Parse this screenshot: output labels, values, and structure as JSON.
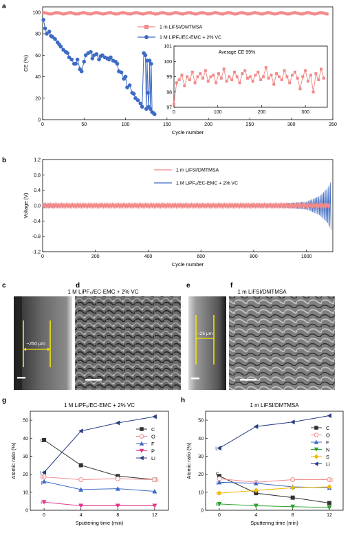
{
  "panel_letters": {
    "a": "a",
    "b": "b",
    "c": "c",
    "d": "d",
    "e": "e",
    "f": "f",
    "g": "g",
    "h": "h"
  },
  "panel_c_title": "1 M LiPF₆/EC-EMC + 2% VC",
  "panel_e_title": "1 m LiFSI/DMTMSA",
  "sem_labels": {
    "c_thickness": "~250 μm",
    "e_thickness": "~26 μm"
  },
  "chart_data": [
    {
      "id": "a",
      "type": "scatter",
      "xlabel": "Cycle number",
      "ylabel": "CE (%)",
      "xlim": [
        0,
        350
      ],
      "ylim": [
        0,
        105
      ],
      "xticks": [
        0,
        50,
        100,
        150,
        200,
        250,
        300,
        350
      ],
      "yticks": [
        0,
        20,
        40,
        60,
        80,
        100
      ],
      "legend": "top-center",
      "series": [
        {
          "name": "1 m LiFSI/DMTMSA",
          "color": "#f28a8a",
          "marker": "square",
          "x_range": [
            1,
            345
          ],
          "value": 99
        },
        {
          "name": "1 M LiPF₆/EC-EMC + 2% VC",
          "color": "#3e6bc4",
          "marker": "circle",
          "x": [
            1,
            3,
            5,
            8,
            10,
            12,
            15,
            18,
            20,
            22,
            25,
            28,
            30,
            32,
            35,
            38,
            40,
            42,
            45,
            47,
            50,
            52,
            55,
            58,
            60,
            62,
            65,
            68,
            70,
            72,
            75,
            78,
            80,
            82,
            85,
            88,
            90,
            92,
            95,
            98,
            100,
            102,
            105,
            108,
            110,
            112,
            115,
            118,
            120,
            122,
            124,
            125,
            126,
            127,
            128,
            129,
            130,
            131,
            132,
            134,
            135
          ],
          "y": [
            93,
            85,
            80,
            82,
            78,
            77,
            75,
            72,
            70,
            68,
            65,
            63,
            62,
            58,
            56,
            52,
            52,
            56,
            47,
            45,
            54,
            60,
            62,
            63,
            57,
            60,
            61,
            56,
            59,
            60,
            58,
            57,
            56,
            58,
            55,
            54,
            52,
            45,
            44,
            38,
            40,
            30,
            32,
            25,
            24,
            20,
            18,
            15,
            12,
            62,
            60,
            10,
            55,
            25,
            12,
            55,
            10,
            52,
            7,
            6,
            5
          ]
        },
        {
          "name": "",
          "color": "#f28a8a",
          "marker": "square",
          "inset": true,
          "x": [
            0,
            6,
            12,
            18,
            24,
            30,
            36,
            42,
            48,
            54,
            60,
            66,
            72,
            78,
            84,
            90,
            96,
            102,
            108,
            114,
            120,
            126,
            132,
            138,
            144,
            150,
            156,
            162,
            168,
            174,
            180,
            186,
            192,
            198,
            204,
            210,
            216,
            222,
            228,
            234,
            240,
            246,
            252,
            258,
            264,
            270,
            276,
            282,
            288,
            294,
            300,
            306,
            312,
            318,
            324,
            330,
            336,
            342
          ],
          "y": [
            97.2,
            98.6,
            98.8,
            99.1,
            98.4,
            99.0,
            98.8,
            99.3,
            98.6,
            99.0,
            99.2,
            98.9,
            99.4,
            98.7,
            99.0,
            99.1,
            98.6,
            99.2,
            98.9,
            99.5,
            98.7,
            99.0,
            98.8,
            99.3,
            99.0,
            98.6,
            99.2,
            99.4,
            98.9,
            99.0,
            98.7,
            99.1,
            99.3,
            98.8,
            99.0,
            99.6,
            98.9,
            99.1,
            98.5,
            99.2,
            99.0,
            98.8,
            99.4,
            99.0,
            98.6,
            99.1,
            99.3,
            98.9,
            98.2,
            99.0,
            99.4,
            98.7,
            99.1,
            98.0,
            99.2,
            98.8,
            99.5,
            98.9
          ]
        }
      ],
      "inset": {
        "annotation": "Average CE 99%",
        "xlim": [
          0,
          350
        ],
        "ylim": [
          97,
          101
        ],
        "xticks": [
          0,
          100,
          200,
          300
        ],
        "yticks": [
          97,
          98,
          99,
          100,
          101
        ]
      }
    },
    {
      "id": "b",
      "type": "line",
      "xlabel": "Cycle number",
      "ylabel": "Voltage (V)",
      "xlim": [
        0,
        1100
      ],
      "ylim": [
        -1.2,
        1.2
      ],
      "xticks": [
        0,
        200,
        400,
        600,
        800,
        1000
      ],
      "yticks": [
        -1.2,
        -0.8,
        -0.4,
        0,
        0.4,
        0.8,
        1.2
      ],
      "legend": "top-center",
      "series": [
        {
          "name": "1 m LiFSI/DMTMSA",
          "color": "#f28a8a",
          "amplitude": 0.03
        },
        {
          "name": "1 M LiPF₆/EC-EMC + 2% VC",
          "color": "#3e6bc4",
          "envelope_x": [
            0,
            50,
            100,
            300,
            600,
            900,
            1000,
            1050,
            1080,
            1095
          ],
          "envelope_y": [
            0.06,
            0.05,
            0.04,
            0.03,
            0.03,
            0.05,
            0.1,
            0.25,
            0.45,
            0.65
          ]
        }
      ]
    },
    {
      "id": "g",
      "type": "line",
      "title": "1 M LiPF₆/EC-EMC + 2% VC",
      "xlabel": "Sputtering time (min)",
      "ylabel": "Atomic ratio (%)",
      "xlim": [
        -1.5,
        13.5
      ],
      "ylim": [
        0,
        55
      ],
      "xticks": [
        0,
        4,
        8,
        12
      ],
      "yticks": [
        0,
        10,
        20,
        30,
        40,
        50
      ],
      "x": [
        0,
        4,
        8,
        12
      ],
      "legend": "right",
      "series": [
        {
          "name": "C",
          "color": "#333333",
          "marker": "square",
          "values": [
            39,
            25,
            19,
            17
          ]
        },
        {
          "name": "O",
          "color": "#f28a8a",
          "marker": "circle-open",
          "values": [
            18.5,
            17,
            17.5,
            17
          ]
        },
        {
          "name": "F",
          "color": "#3e6bc4",
          "marker": "triangle",
          "values": [
            16,
            11.5,
            12,
            10.5
          ]
        },
        {
          "name": "P",
          "color": "#e0388d",
          "marker": "triangle-down",
          "values": [
            4.5,
            2.5,
            2.5,
            2.5
          ]
        },
        {
          "name": "Li",
          "color": "#283c82",
          "marker": "triangle-left",
          "values": [
            21,
            44,
            48.5,
            52
          ]
        }
      ]
    },
    {
      "id": "h",
      "type": "line",
      "title": "1 m LiFSI/DMTMSA",
      "xlabel": "Sputtering time (min)",
      "ylabel": "Atomic ratio (%)",
      "xlim": [
        -1.5,
        13.5
      ],
      "ylim": [
        0,
        55
      ],
      "xticks": [
        0,
        4,
        8,
        12
      ],
      "yticks": [
        0,
        10,
        20,
        30,
        40,
        50
      ],
      "x": [
        0,
        4,
        8,
        12
      ],
      "legend": "right",
      "series": [
        {
          "name": "C",
          "color": "#333333",
          "marker": "square",
          "values": [
            19,
            9.5,
            7,
            4
          ]
        },
        {
          "name": "O",
          "color": "#f28a8a",
          "marker": "circle-open",
          "values": [
            17.5,
            15.5,
            17,
            17
          ]
        },
        {
          "name": "F",
          "color": "#3e6bc4",
          "marker": "triangle",
          "values": [
            15.5,
            15,
            13,
            12.5
          ]
        },
        {
          "name": "N",
          "color": "#2ca02c",
          "marker": "triangle-down",
          "values": [
            3.5,
            2.5,
            2,
            1.5
          ]
        },
        {
          "name": "S",
          "color": "#f5b800",
          "marker": "diamond",
          "values": [
            9.5,
            11,
            12.5,
            13
          ]
        },
        {
          "name": "Li",
          "color": "#283c82",
          "marker": "triangle-left",
          "values": [
            34.5,
            46.5,
            49,
            52.5
          ]
        }
      ]
    }
  ]
}
